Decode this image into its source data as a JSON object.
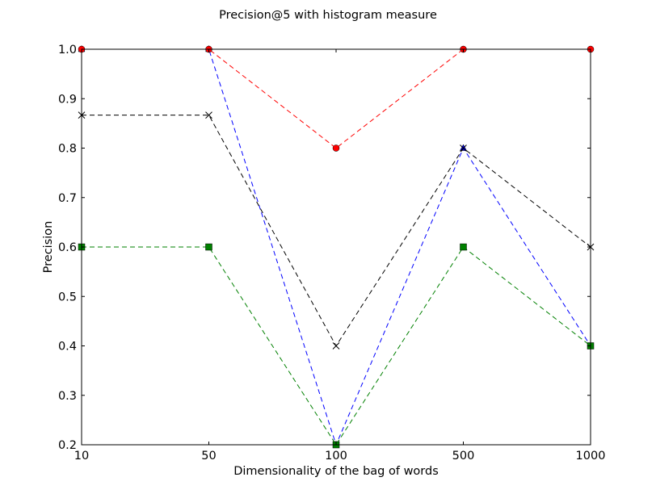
{
  "chart_data": {
    "type": "line",
    "title": "Precision@5 with histogram measure",
    "xlabel": "Dimensionality of the bag of words",
    "ylabel": "Precision",
    "categories": [
      "10",
      "50",
      "100",
      "500",
      "1000"
    ],
    "ylim": [
      0.2,
      1.0
    ],
    "yticks": [
      "0.2",
      "0.3",
      "0.4",
      "0.5",
      "0.6",
      "0.7",
      "0.8",
      "0.9",
      "1.0"
    ],
    "grid": false,
    "legend": null,
    "series": [
      {
        "color": "#0000ff",
        "marker": "triangle",
        "linestyle": "dashed",
        "values": [
          1.0,
          1.0,
          0.2,
          0.8,
          0.4
        ]
      },
      {
        "color": "#008000",
        "marker": "square",
        "linestyle": "dashed",
        "values": [
          0.6,
          0.6,
          0.2,
          0.6,
          0.4
        ]
      },
      {
        "color": "#ff0000",
        "marker": "circle",
        "linestyle": "dashed",
        "values": [
          1.0,
          1.0,
          0.8,
          1.0,
          1.0
        ]
      },
      {
        "color": "#000000",
        "marker": "x",
        "linestyle": "dashed",
        "values": [
          0.8667,
          0.8667,
          0.4,
          0.8,
          0.6
        ]
      }
    ]
  }
}
